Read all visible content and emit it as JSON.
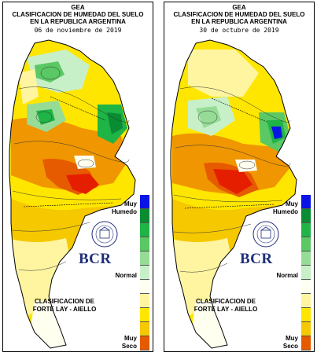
{
  "panels": [
    {
      "agency": "GEA",
      "title_line1": "CLASIFICACION DE HUMEDAD DEL SUELO",
      "title_line2": "EN LA REPUBLICA ARGENTINA",
      "date": "06 de noviembre de 2019",
      "legend_top": "Muy",
      "legend_top2": "Humedo",
      "legend_mid": "Normal",
      "legend_bottom": "Muy",
      "legend_bottom2": "Seco",
      "logo_text": "BCR",
      "method_line1": "CLASIFICACION DE",
      "method_line2": "FORTE LAY - AIELLO"
    },
    {
      "agency": "GEA",
      "title_line1": "CLASIFICACION DE HUMEDAD DEL SUELO",
      "title_line2": "EN LA REPUBLICA ARGENTINA",
      "date": "30 de octubre de 2019",
      "legend_top": "Muy",
      "legend_top2": "Humedo",
      "legend_mid": "Normal",
      "legend_bottom": "Muy",
      "legend_bottom2": "Seco",
      "logo_text": "BCR",
      "method_line1": "CLASIFICACION DE",
      "method_line2": "FORTE LAY - AIELLO"
    }
  ],
  "legend_colors": [
    "#0a14e6",
    "#0a8c32",
    "#1fb446",
    "#5ac864",
    "#96dc96",
    "#c8f0c8",
    "#fffff0",
    "#fff5a0",
    "#ffe600",
    "#f5c800",
    "#f09600",
    "#e65a00",
    "#e61e00"
  ],
  "seal_text": "BOLSA DE COMERCIO DE ROSARIO"
}
